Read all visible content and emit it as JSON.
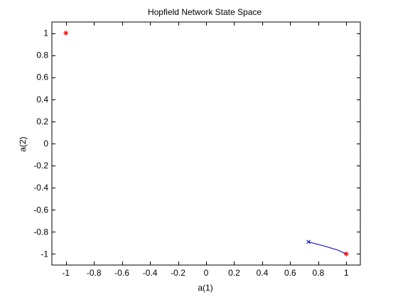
{
  "chart_data": {
    "type": "scatter",
    "title": "Hopfield Network State Space",
    "xlabel": "a(1)",
    "ylabel": "a(2)",
    "xlim": [
      -1.1,
      1.1
    ],
    "ylim": [
      -1.1,
      1.1
    ],
    "xticks": [
      -1,
      -0.8,
      -0.6,
      -0.4,
      -0.2,
      0,
      0.2,
      0.4,
      0.6,
      0.8,
      1
    ],
    "xtick_labels": [
      "-1",
      "-0.8",
      "-0.6",
      "-0.4",
      "-0.2",
      "0",
      "0.2",
      "0.4",
      "0.6",
      "0.8",
      "1"
    ],
    "yticks": [
      1,
      0.8,
      0.6,
      0.4,
      0.2,
      0,
      -0.2,
      -0.4,
      -0.6,
      -0.8,
      -1
    ],
    "ytick_labels": [
      "1",
      "0.8",
      "0.6",
      "0.4",
      "0.2",
      "0",
      "-0.2",
      "-0.4",
      "-0.6",
      "-0.8",
      "-1"
    ],
    "grid": false,
    "stable_points": {
      "marker": "asterisk",
      "color": "#ff0000",
      "points": [
        {
          "x": -1,
          "y": 1
        },
        {
          "x": 1,
          "y": -1
        }
      ]
    },
    "trajectory": {
      "marker": "x",
      "color": "#0000cc",
      "points": [
        {
          "x": 0.73,
          "y": -0.89
        },
        {
          "x": 0.85,
          "y": -0.93
        },
        {
          "x": 0.94,
          "y": -0.965
        },
        {
          "x": 1.0,
          "y": -1.0
        }
      ]
    }
  }
}
